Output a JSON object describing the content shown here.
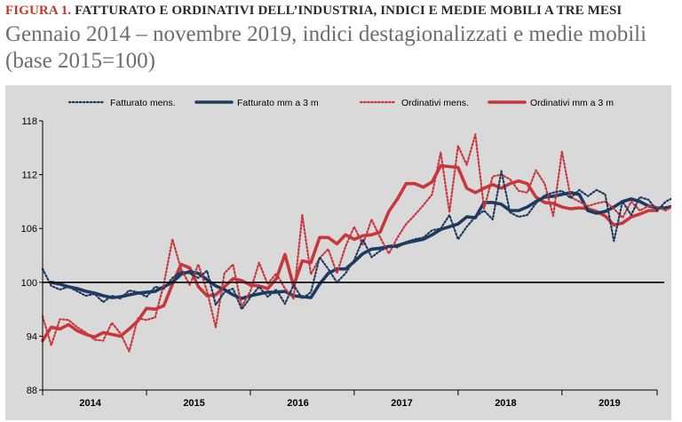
{
  "header": {
    "figure_number": "FIGURA 1.",
    "figure_title": "FATTURATO E ORDINATIVI DELL’INDUSTRIA, INDICI E MEDIE MOBILI A TRE MESI",
    "subtitle": "Gennaio 2014 – novembre 2019, indici destagionalizzati e medie mobili (base 2015=100)"
  },
  "colors": {
    "fatturato": "#1f3a5f",
    "ordinativi": "#c8363c",
    "background": "#d9d9d9",
    "title_accent": "#c0392b"
  },
  "chart_data": {
    "type": "line",
    "x_unit": "monthly, Jan 2014 – Nov 2019",
    "start": "2014-01",
    "ylim": [
      88,
      118
    ],
    "yticks": [
      88,
      94,
      100,
      106,
      112,
      118
    ],
    "ytick_labels": [
      "88",
      "94",
      "100",
      "106",
      "112",
      "118"
    ],
    "xtick_labels": [
      "2014",
      "2015",
      "2016",
      "2017",
      "2018",
      "2019"
    ],
    "reference_line": 100,
    "legend_position": "top",
    "series": [
      {
        "name": "Fatturato mens.",
        "style": "dotted",
        "color": "#1f3a5f",
        "start": "2014-01",
        "values": [
          101.5,
          99.6,
          99.2,
          99.5,
          99.0,
          98.5,
          98.7,
          97.8,
          98.5,
          98.2,
          99.1,
          98.9,
          98.4,
          99.5,
          99.3,
          100.5,
          101.2,
          101.0,
          100.5,
          101.3,
          97.5,
          98.9,
          99.3,
          97.0,
          98.3,
          99.5,
          98.4,
          99.2,
          97.6,
          99.7,
          98.2,
          98.9,
          102.8,
          101.5,
          100.0,
          101.0,
          102.5,
          104.8,
          102.8,
          103.5,
          104.0,
          103.9,
          104.5,
          104.8,
          105.0,
          105.8,
          106.0,
          107.5,
          104.8,
          106.2,
          107.3,
          108.0,
          107.0,
          112.4,
          107.8,
          107.3,
          107.5,
          108.8,
          109.7,
          110.0,
          110.2,
          109.4,
          110.3,
          109.6,
          110.3,
          109.8,
          104.6,
          109.0,
          107.5,
          109.5,
          109.2,
          108.0,
          109.0,
          109.5,
          108.6,
          108.8,
          109.0,
          109.0,
          109.0,
          108.5
        ]
      },
      {
        "name": "Fatturato mm a 3 m",
        "style": "solid",
        "color": "#1f3a5f",
        "start": "2014-02",
        "values": [
          100.0,
          99.8,
          99.5,
          99.3,
          99.0,
          98.8,
          98.5,
          98.3,
          98.4,
          98.6,
          98.8,
          98.9,
          99.0,
          99.5,
          100.0,
          100.9,
          101.2,
          101.0,
          100.3,
          99.6,
          99.2,
          98.6,
          98.2,
          98.5,
          98.7,
          98.9,
          98.9,
          99.0,
          98.5,
          98.4,
          98.3,
          99.8,
          101.0,
          101.5,
          101.5,
          102.3,
          103.2,
          103.7,
          103.8,
          104.0,
          104.1,
          104.4,
          104.6,
          104.8,
          105.3,
          105.9,
          106.2,
          106.5,
          107.3,
          107.2,
          108.9,
          108.9,
          108.7,
          108.0,
          108.0,
          108.4,
          109.0,
          109.5,
          109.6,
          109.8,
          110.0,
          109.8,
          108.0,
          107.7,
          107.9,
          108.4,
          109.0,
          109.3,
          109.0,
          108.5,
          108.3,
          108.3,
          108.5,
          108.7,
          108.9
        ]
      },
      {
        "name": "Ordinativi mens.",
        "style": "dotted",
        "color": "#c8363c",
        "start": "2014-01",
        "values": [
          96.2,
          93.0,
          95.9,
          95.8,
          95.0,
          94.4,
          93.6,
          93.5,
          95.5,
          94.3,
          92.3,
          96.0,
          95.8,
          96.1,
          99.8,
          104.8,
          101.5,
          99.7,
          102.0,
          99.0,
          95.0,
          101.0,
          102.0,
          97.3,
          99.0,
          102.2,
          99.8,
          101.0,
          99.3,
          98.2,
          107.5,
          100.9,
          102.7,
          103.7,
          101.0,
          104.0,
          106.2,
          104.2,
          107.0,
          105.0,
          103.2,
          105.0,
          106.5,
          107.5,
          108.6,
          109.8,
          114.5,
          107.8,
          115.2,
          113.1,
          116.5,
          108.2,
          111.8,
          112.0,
          111.5,
          110.2,
          110.0,
          112.5,
          111.0,
          107.4,
          114.6,
          109.5,
          109.0,
          108.5,
          108.8,
          109.0,
          108.2,
          107.2,
          109.0,
          108.0,
          108.5,
          108.4,
          108.0,
          108.6,
          106.5,
          107.1,
          107.5,
          108.5,
          107.9,
          108.2
        ]
      },
      {
        "name": "Ordinativi mm a 3 m",
        "style": "solid",
        "color": "#c8363c",
        "start": "2014-01",
        "values": [
          93.5,
          95.0,
          94.8,
          95.3,
          94.6,
          94.2,
          93.9,
          94.4,
          94.2,
          94.0,
          94.8,
          95.7,
          97.1,
          97.0,
          97.4,
          99.8,
          102.0,
          101.6,
          99.5,
          98.5,
          98.6,
          99.5,
          100.4,
          100.2,
          99.7,
          99.6,
          99.3,
          100.4,
          103.1,
          99.6,
          102.4,
          102.2,
          105.0,
          105.0,
          104.3,
          105.3,
          104.8,
          105.2,
          105.3,
          105.6,
          107.9,
          109.3,
          111.0,
          111.0,
          110.6,
          111.2,
          113.0,
          112.9,
          112.8,
          110.5,
          110.0,
          110.5,
          110.9,
          110.5,
          111.0,
          111.3,
          111.0,
          109.5,
          108.9,
          108.8,
          108.4,
          108.2,
          108.3,
          108.2,
          107.9,
          107.4,
          106.4,
          106.6,
          107.3,
          107.6,
          108.0,
          108.0
        ]
      }
    ]
  }
}
